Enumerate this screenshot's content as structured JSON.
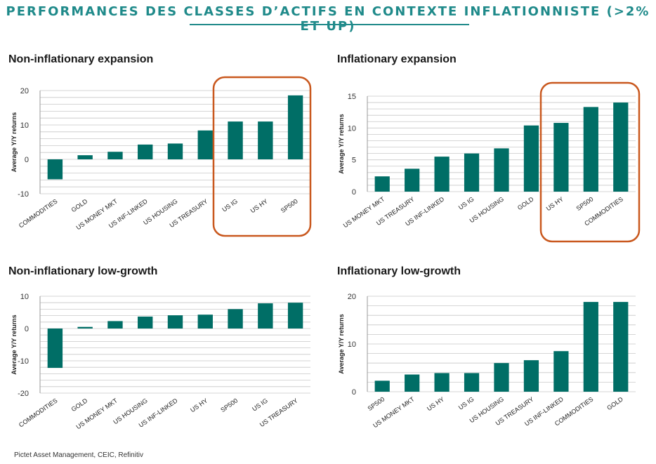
{
  "header": {
    "title": "PERFORMANCES DES CLASSES D’ACTIFS EN CONTEXTE INFLATIONNISTE (>2% ET UP)"
  },
  "colors": {
    "bar": "#006e66",
    "highlight": "#c9581e",
    "title": "#1f8a8a",
    "grid": "#c8c8c8"
  },
  "chart_data": [
    {
      "type": "bar",
      "title": "Non-inflationary expansion",
      "ylabel": "Average Y/Y returns",
      "ylim": [
        -10,
        20
      ],
      "yticks": [
        20,
        10,
        0,
        -10
      ],
      "categories": [
        "COMMODITIES",
        "GOLD",
        "US MONEY MKT",
        "US INF-LINKED",
        "US HOUSING",
        "US TREASURY",
        "US IG",
        "US HY",
        "SP500"
      ],
      "values": [
        -5.8,
        1.2,
        2.2,
        4.3,
        4.6,
        8.4,
        11.0,
        11.0,
        18.6
      ],
      "highlight_from": 6
    },
    {
      "type": "bar",
      "title": "Inflationary expansion",
      "ylabel": "Average Y/Y returns",
      "ylim": [
        0,
        15
      ],
      "yticks": [
        15,
        10,
        5,
        0
      ],
      "categories": [
        "US MONEY MKT",
        "US TREASURY",
        "US INF-LINKED",
        "US IG",
        "US HOUSING",
        "GOLD",
        "US HY",
        "SP500",
        "COMMODITIES"
      ],
      "values": [
        2.4,
        3.6,
        5.5,
        6.0,
        6.8,
        10.4,
        10.8,
        13.3,
        14.0
      ],
      "highlight_from": 6
    },
    {
      "type": "bar",
      "title": "Non-inflationary low-growth",
      "ylabel": "Average Y/Y returns",
      "ylim": [
        -20,
        10
      ],
      "yticks": [
        10,
        0,
        -10,
        -20
      ],
      "categories": [
        "COMMODITIES",
        "GOLD",
        "US MONEY MKT",
        "US HOUSING",
        "US INF-LINKED",
        "US HY",
        "SP500",
        "US IG",
        "US TREASURY"
      ],
      "values": [
        -12.2,
        0.5,
        2.3,
        3.7,
        4.1,
        4.3,
        6.0,
        7.8,
        8.0
      ],
      "highlight_from": null
    },
    {
      "type": "bar",
      "title": "Inflationary low-growth",
      "ylabel": "Average Y/Y returns",
      "ylim": [
        0,
        20
      ],
      "yticks": [
        20,
        10,
        0
      ],
      "categories": [
        "SP500",
        "US MONEY MKT",
        "US HY",
        "US IG",
        "US HOUSING",
        "US TREASURY",
        "US INF-LINKED",
        "COMMODITIES",
        "GOLD"
      ],
      "values": [
        2.3,
        3.6,
        3.9,
        3.9,
        6.0,
        6.6,
        8.5,
        18.8,
        18.8
      ],
      "highlight_from": null
    }
  ],
  "footer": {
    "source": "Pictet Asset Management, CEIC, Refinitiv"
  }
}
